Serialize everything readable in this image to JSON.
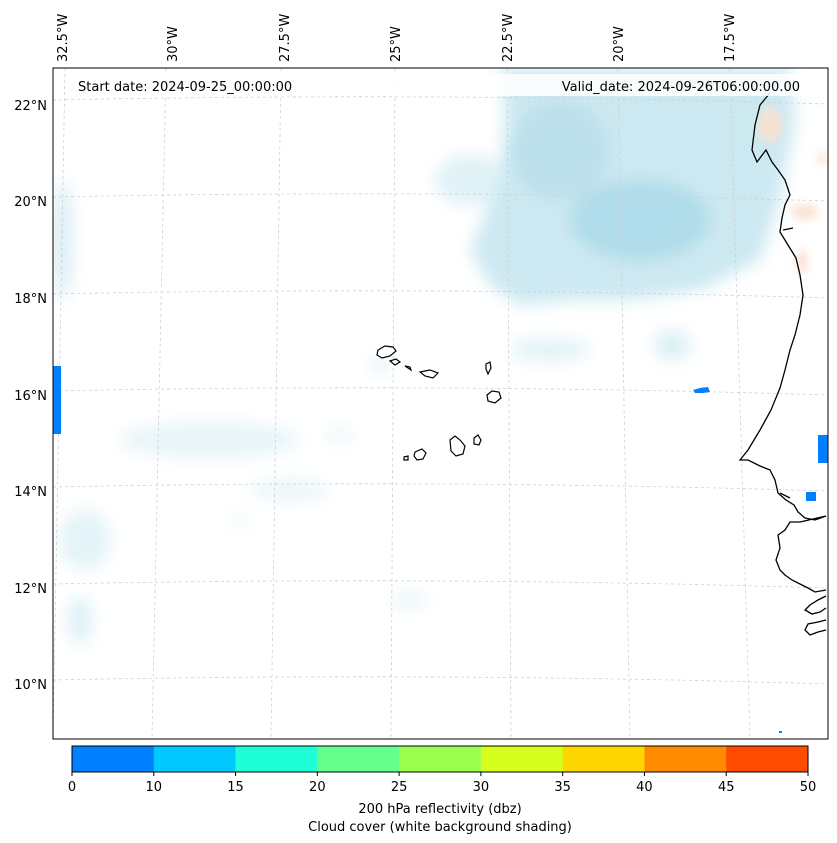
{
  "header": {
    "start_date": "Start date: 2024-09-25_00:00:00",
    "valid_date": "Valid_date: 2024-09-26T06:00:00.00"
  },
  "map": {
    "lon_labels": [
      "32.5°W",
      "30°W",
      "27.5°W",
      "25°W",
      "22.5°W",
      "20°W",
      "17.5°W"
    ],
    "lat_labels": [
      "22°N",
      "20°N",
      "18°N",
      "16°N",
      "14°N",
      "12°N",
      "10°N"
    ],
    "regions": [
      "Cape Verde Islands",
      "West African coast"
    ]
  },
  "colorbar": {
    "ticks": [
      "0",
      "10",
      "15",
      "20",
      "25",
      "30",
      "35",
      "40",
      "45",
      "50"
    ],
    "colors": [
      "#0080ff",
      "#00c8ff",
      "#1effd8",
      "#64ff8c",
      "#9bff50",
      "#d7ff1e",
      "#ffd700",
      "#ff8c00",
      "#ff4b00"
    ],
    "label_line1": "200 hPa reflectivity (dbz)",
    "label_line2": "Cloud cover (white background shading)"
  }
}
